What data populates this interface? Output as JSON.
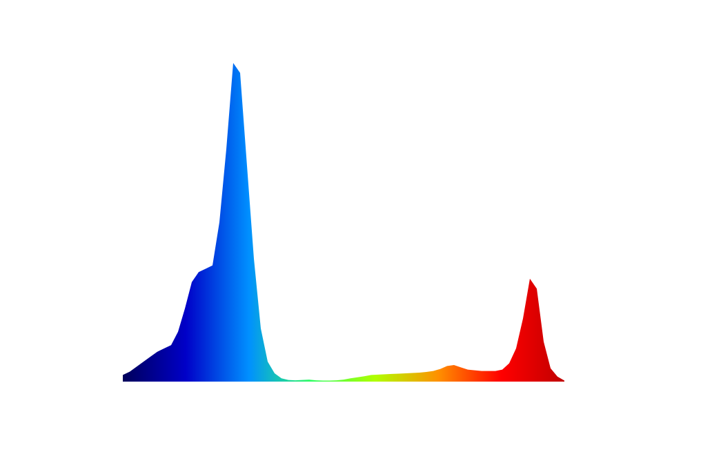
{
  "chart_data": {
    "type": "area",
    "values": [
      2,
      3,
      4.5,
      6,
      7.5,
      9,
      10,
      11,
      15,
      22,
      30,
      33,
      34,
      35,
      48,
      70,
      96,
      93,
      65,
      37,
      16,
      6,
      2.5,
      1,
      0.5,
      0.4,
      0.5,
      0.6,
      0.4,
      0.3,
      0.3,
      0.4,
      0.6,
      1,
      1.3,
      1.6,
      2,
      2.1,
      2.2,
      2.3,
      2.4,
      2.5,
      2.6,
      2.7,
      2.9,
      3.2,
      3.8,
      4.7,
      5,
      4.3,
      3.6,
      3.4,
      3.2,
      3.2,
      3.2,
      3.6,
      5.5,
      10,
      19,
      31,
      28,
      12,
      4,
      1.5,
      0.3
    ],
    "ylim": [
      0,
      100
    ],
    "colormap": [
      "#00005a",
      "#0000c8",
      "#0090ff",
      "#30ff60",
      "#b0ff00",
      "#ff9000",
      "#ff0000",
      "#c00000"
    ]
  }
}
